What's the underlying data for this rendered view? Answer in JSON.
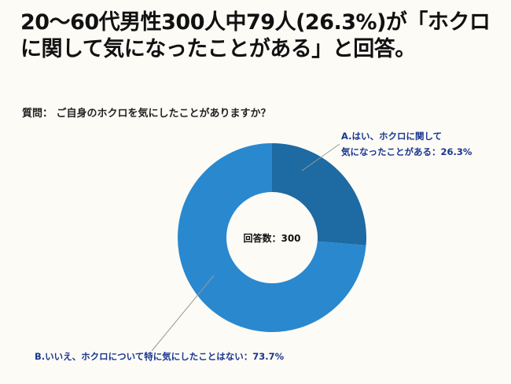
{
  "header": {
    "title": "20〜60代男性300人中79人(26.3%)が「ホクロに関して気になったことがある」と回答。"
  },
  "question": "質問： ご自身のホクロを気にしたことがありますか？",
  "chart_data": {
    "type": "pie",
    "donut": true,
    "center_label": "回答数：300",
    "slices": [
      {
        "label_line1": "A.はい、ホクロに関して",
        "label_line2": "気になったことがある：26.3%",
        "value": 26.3,
        "color": "#1e6aa2"
      },
      {
        "label_line1": "B.いいえ、ホクロについて特に気にしたことはない：73.7%",
        "value": 73.7,
        "color": "#2a88cf"
      }
    ]
  }
}
